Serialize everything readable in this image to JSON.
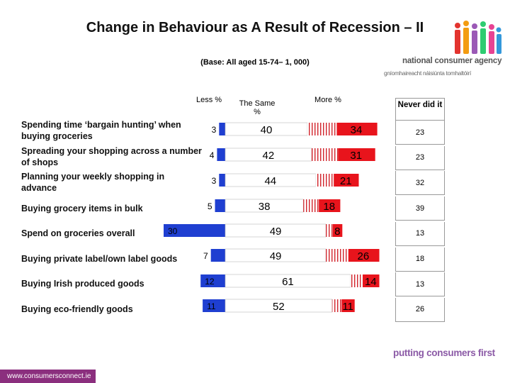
{
  "header": {
    "title": "Change in Behaviour as A Result of Recession – II",
    "base": "(Base: All aged 15-74– 1, 000)"
  },
  "logo": {
    "name": "national consumer agency",
    "irish": "gníomhaireacht náisiúnta tomhaltóirí",
    "colors": [
      "#e3342f",
      "#f39c12",
      "#9b59b6",
      "#2ecc71",
      "#e84393",
      "#3498db"
    ]
  },
  "columns": {
    "less": "Less %",
    "same": "The Same %",
    "more": "More %",
    "never": "Never did it"
  },
  "colors": {
    "less": "#1f3fd1",
    "same": "#ffffff",
    "more": "#e8141c",
    "hatch": "#d2232a"
  },
  "chart_data": {
    "type": "bar",
    "stacked": true,
    "categories": [
      "Spending time ‘bargain hunting’ when buying groceries",
      "Spreading your shopping across a number of shops",
      "Planning your weekly shopping in advance",
      "Buying grocery items in bulk",
      "Spend on groceries overall",
      "Buying private label/own label goods",
      "Buying Irish produced goods",
      "Buying eco-friendly goods"
    ],
    "series": [
      {
        "name": "Less %",
        "values": [
          3,
          4,
          3,
          5,
          30,
          7,
          12,
          11
        ]
      },
      {
        "name": "The Same %",
        "values": [
          40,
          42,
          44,
          38,
          49,
          49,
          61,
          52
        ]
      },
      {
        "name": "More %",
        "values": [
          34,
          31,
          21,
          18,
          8,
          26,
          14,
          11
        ]
      },
      {
        "name": "Never did it",
        "values": [
          23,
          23,
          32,
          39,
          13,
          18,
          13,
          26
        ]
      }
    ]
  },
  "footer": {
    "url": "www.consumersconnect.ie",
    "tagline": "putting consumers first"
  }
}
